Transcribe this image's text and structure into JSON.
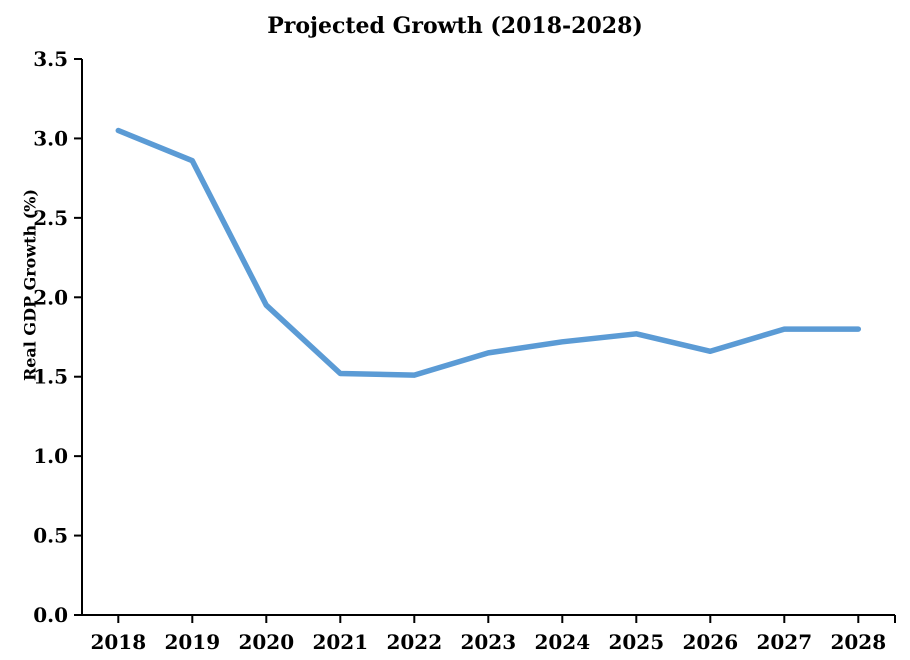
{
  "chart_data": {
    "type": "line",
    "title": "Projected Growth (2018-2028)",
    "xlabel": "",
    "ylabel": "Real GDP Growth (%)",
    "x": [
      "2018",
      "2019",
      "2020",
      "2021",
      "2022",
      "2023",
      "2024",
      "2025",
      "2026",
      "2027",
      "2028"
    ],
    "series": [
      {
        "name": "Real GDP Growth (%)",
        "values": [
          3.05,
          2.86,
          1.95,
          1.52,
          1.51,
          1.65,
          1.72,
          1.77,
          1.66,
          1.8,
          1.8
        ],
        "color": "#5B9BD5"
      }
    ],
    "ylim": [
      0.0,
      3.5
    ],
    "yticks": [
      0.0,
      0.5,
      1.0,
      1.5,
      2.0,
      2.5,
      3.0,
      3.5
    ],
    "ytick_labels": [
      "0.0",
      "0.5",
      "1.0",
      "1.5",
      "2.0",
      "2.5",
      "3.0",
      "3.5"
    ],
    "grid": false,
    "legend": "none",
    "axis_color": "#000000",
    "background_color": "#ffffff"
  }
}
